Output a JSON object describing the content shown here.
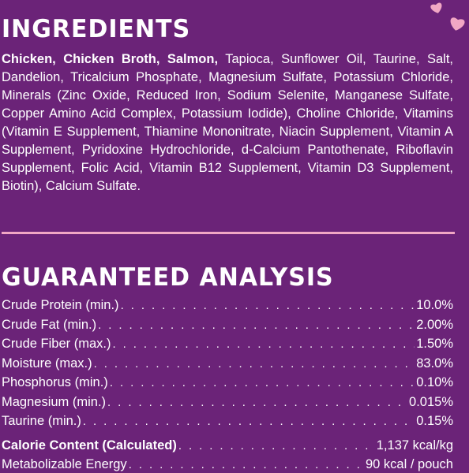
{
  "ingredients": {
    "heading": "INGREDIENTS",
    "bold_lead": "Chicken, Chicken Broth, Salmon,",
    "rest": " Tapioca, Sunflower Oil, Taurine, Salt, Dandelion, Tricalcium Phosphate, Magnesium Sulfate, Potassium Chloride, Minerals (Zinc Oxide, Reduced Iron, Sodium Selenite, Manganese Sulfate, Copper Amino Acid Complex, Potassium Iodide), Choline Chloride, Vitamins (Vitamin E Supplement, Thiamine Mononitrate, Niacin Supplement, Vitamin A Supplement, Pyridoxine Hydrochloride, d-Calcium Pantothenate, Riboflavin Supplement, Folic Acid, Vitamin B12 Supplement, Vitamin D3 Supplement, Biotin), Calcium Sulfate."
  },
  "analysis": {
    "heading": "GUARANTEED ANALYSIS",
    "rows": [
      {
        "label": "Crude Protein (min.)",
        "value": "10.0%"
      },
      {
        "label": "Crude Fat (min.)",
        "value": "2.00%"
      },
      {
        "label": "Crude Fiber (max.)",
        "value": "1.50%"
      },
      {
        "label": "Moisture (max.)",
        "value": "83.0%"
      },
      {
        "label": "Phosphorus (min.)",
        "value": "0.10%"
      },
      {
        "label": "Magnesium (min.)",
        "value": "0.015%"
      },
      {
        "label": "Taurine (min.)",
        "value": "0.15%"
      }
    ],
    "calorie": {
      "label": "Calorie Content (Calculated)",
      "value": "1,137 kcal/kg"
    },
    "energy": {
      "label": "Metabolizable Energy",
      "value": "90 kcal / pouch"
    }
  },
  "colors": {
    "background": "#6b2378",
    "accent_pink": "#f1a7c4",
    "text": "#ffffff"
  },
  "icons": [
    "heart-icon",
    "heart-icon"
  ]
}
